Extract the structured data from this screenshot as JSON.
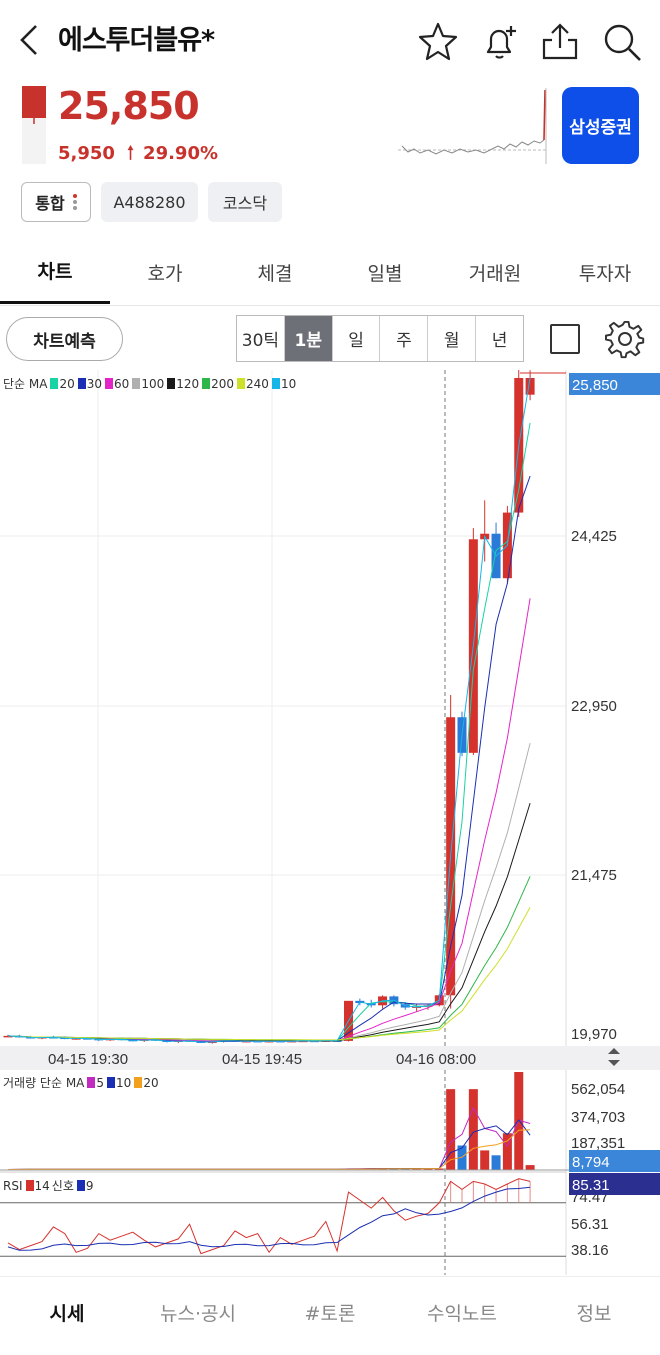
{
  "header": {
    "title": "에스투더블유*",
    "icons": [
      "back-icon",
      "star-icon",
      "bell-add-icon",
      "share-icon",
      "search-icon"
    ]
  },
  "quote": {
    "price": "25,850",
    "change": "5,950",
    "change_rate": "29.90%",
    "direction": "up",
    "broker_button": "삼성증권",
    "up_color": "#c8322c"
  },
  "tags": {
    "market_type": "통합",
    "code": "A488280",
    "exchange": "코스닥"
  },
  "tabs": [
    "차트",
    "호가",
    "체결",
    "일별",
    "거래원",
    "투자자"
  ],
  "active_tab": "차트",
  "toolbar": {
    "predict_button": "차트예측",
    "periods": [
      "30틱",
      "1분",
      "일",
      "주",
      "월",
      "년"
    ],
    "active_period": "1분",
    "icons": [
      "checkbox-icon",
      "gear-icon"
    ]
  },
  "chart_legend": {
    "main": {
      "label": "단순 MA",
      "items": [
        {
          "period": "20",
          "color": "#19d3a4"
        },
        {
          "period": "30",
          "color": "#1a2fb3"
        },
        {
          "period": "60",
          "color": "#e524c8"
        },
        {
          "period": "100",
          "color": "#b0b0b0"
        },
        {
          "period": "120",
          "color": "#1a1a1a"
        },
        {
          "period": "200",
          "color": "#2fb64a"
        },
        {
          "period": "240",
          "color": "#cde02a"
        },
        {
          "period": "10",
          "color": "#16b6e6"
        }
      ]
    },
    "volume": {
      "label": "거래량 단순 MA",
      "items": [
        {
          "period": "5",
          "color": "#c02bc0"
        },
        {
          "period": "10",
          "color": "#1a2fb3"
        },
        {
          "period": "20",
          "color": "#f2a11e"
        }
      ]
    },
    "rsi": {
      "label": "RSI",
      "items": [
        {
          "period": "14",
          "color": "#d6322d"
        },
        {
          "period": "신호",
          "color": "#1a2fb3",
          "value": "9"
        }
      ],
      "signal_label": "신호",
      "signal_value": "9"
    }
  },
  "chart_data": {
    "type": "candlestick",
    "y_axis": {
      "ticks": [
        "24,425",
        "22,950",
        "21,475",
        "19,970"
      ],
      "current": "25,850",
      "range": [
        19850,
        25850
      ]
    },
    "x_axis": {
      "ticks": [
        "04-15 19:30",
        "04-15 19:45",
        "04-16 08:00"
      ]
    },
    "volume_axis": {
      "ticks": [
        "562,054",
        "374,703",
        "187,351"
      ],
      "current": "8,794"
    },
    "rsi_axis": {
      "ticks": [
        "74.47",
        "56.31",
        "38.16"
      ],
      "current": "85.31"
    },
    "candles": [
      {
        "o": 19935,
        "h": 19945,
        "l": 19925,
        "c": 19935
      },
      {
        "o": 19935,
        "h": 19945,
        "l": 19920,
        "c": 19925
      },
      {
        "o": 19925,
        "h": 19935,
        "l": 19910,
        "c": 19915
      },
      {
        "o": 19915,
        "h": 19930,
        "l": 19905,
        "c": 19925
      },
      {
        "o": 19925,
        "h": 19935,
        "l": 19915,
        "c": 19920
      },
      {
        "o": 19920,
        "h": 19930,
        "l": 19905,
        "c": 19910
      },
      {
        "o": 19910,
        "h": 19925,
        "l": 19900,
        "c": 19915
      },
      {
        "o": 19915,
        "h": 19925,
        "l": 19905,
        "c": 19910
      },
      {
        "o": 19910,
        "h": 19920,
        "l": 19890,
        "c": 19895
      },
      {
        "o": 19895,
        "h": 19915,
        "l": 19890,
        "c": 19910
      },
      {
        "o": 19910,
        "h": 19920,
        "l": 19895,
        "c": 19900
      },
      {
        "o": 19900,
        "h": 19915,
        "l": 19885,
        "c": 19890
      },
      {
        "o": 19890,
        "h": 19910,
        "l": 19880,
        "c": 19905
      },
      {
        "o": 19905,
        "h": 19915,
        "l": 19890,
        "c": 19895
      },
      {
        "o": 19895,
        "h": 19905,
        "l": 19875,
        "c": 19880
      },
      {
        "o": 19880,
        "h": 19900,
        "l": 19870,
        "c": 19895
      },
      {
        "o": 19895,
        "h": 19900,
        "l": 19880,
        "c": 19885
      },
      {
        "o": 19885,
        "h": 19895,
        "l": 19870,
        "c": 19875
      },
      {
        "o": 19875,
        "h": 19890,
        "l": 19865,
        "c": 19885
      },
      {
        "o": 19885,
        "h": 19900,
        "l": 19875,
        "c": 19895
      },
      {
        "o": 19895,
        "h": 19905,
        "l": 19880,
        "c": 19885
      },
      {
        "o": 19885,
        "h": 19900,
        "l": 19875,
        "c": 19890
      },
      {
        "o": 19890,
        "h": 19900,
        "l": 19880,
        "c": 19885
      },
      {
        "o": 19885,
        "h": 19895,
        "l": 19875,
        "c": 19890
      },
      {
        "o": 19890,
        "h": 19895,
        "l": 19880,
        "c": 19885
      },
      {
        "o": 19885,
        "h": 19895,
        "l": 19878,
        "c": 19890
      },
      {
        "o": 19890,
        "h": 19898,
        "l": 19882,
        "c": 19892
      },
      {
        "o": 19892,
        "h": 19900,
        "l": 19884,
        "c": 19888
      },
      {
        "o": 19888,
        "h": 19898,
        "l": 19880,
        "c": 19894
      },
      {
        "o": 19894,
        "h": 19900,
        "l": 19886,
        "c": 19890
      },
      {
        "o": 19890,
        "h": 20250,
        "l": 19885,
        "c": 20250
      },
      {
        "o": 20250,
        "h": 20270,
        "l": 20210,
        "c": 20230
      },
      {
        "o": 20230,
        "h": 20260,
        "l": 20190,
        "c": 20210
      },
      {
        "o": 20210,
        "h": 20300,
        "l": 20180,
        "c": 20290
      },
      {
        "o": 20290,
        "h": 20300,
        "l": 20200,
        "c": 20220
      },
      {
        "o": 20220,
        "h": 20240,
        "l": 20170,
        "c": 20190
      },
      {
        "o": 20190,
        "h": 20220,
        "l": 20150,
        "c": 20200
      },
      {
        "o": 20200,
        "h": 20220,
        "l": 20170,
        "c": 20210
      },
      {
        "o": 20210,
        "h": 20310,
        "l": 20200,
        "c": 20300
      },
      {
        "o": 20300,
        "h": 23000,
        "l": 20180,
        "c": 22800
      },
      {
        "o": 22800,
        "h": 22850,
        "l": 22450,
        "c": 22480
      },
      {
        "o": 22480,
        "h": 24500,
        "l": 22460,
        "c": 24400
      },
      {
        "o": 24400,
        "h": 24750,
        "l": 24200,
        "c": 24450
      },
      {
        "o": 24450,
        "h": 24550,
        "l": 24050,
        "c": 24050
      },
      {
        "o": 24050,
        "h": 24700,
        "l": 24000,
        "c": 24640
      },
      {
        "o": 24640,
        "h": 26000,
        "l": 24600,
        "c": 25850
      },
      {
        "o": 25700,
        "h": 25920,
        "l": 25650,
        "c": 25850
      }
    ]
  },
  "bottom_nav": [
    "시세",
    "뉴스·공시",
    "#토론",
    "수익노트",
    "정보"
  ],
  "bottom_nav_active": "시세"
}
